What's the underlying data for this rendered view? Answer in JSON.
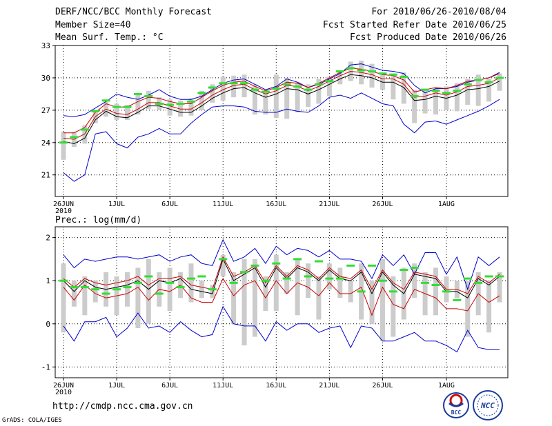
{
  "header": {
    "title": "DERF/NCC/BCC Monthly Forecast",
    "member": "Member Size=40",
    "variable": "Mean Surf. Temp.: °C",
    "period": "For 2010/06/26-2010/08/04",
    "start_date": "Fcst Started Refer Date 2010/06/25",
    "produced": "Fcst Produced Date 2010/06/26"
  },
  "footer": {
    "url": "http://cmdp.ncc.cma.gov.cn",
    "grads": "GrADS: COLA/IGES",
    "logo1": "BCC",
    "logo2": "NCC"
  },
  "colors": {
    "upper_bound": "#0000cc",
    "mean": "#000000",
    "median": "#cc0000",
    "box": "#cccccc",
    "marker": "#33dd33"
  },
  "chart_data": [
    {
      "type": "line",
      "title": "Mean Surf. Temp.: °C",
      "year_label": "2010",
      "xlabels": [
        "26JUN",
        "1JUL",
        "6JUL",
        "11JUL",
        "16JUL",
        "21JUL",
        "26JUL",
        "1AUG"
      ],
      "xlabel_index": [
        0,
        5,
        10,
        15,
        20,
        25,
        30,
        36
      ],
      "yticks": [
        21,
        24,
        27,
        30,
        33
      ],
      "ytick_labels": [
        "21",
        "24",
        "27",
        "30",
        "33"
      ],
      "ylim": [
        19,
        33
      ],
      "max_line": [
        26.5,
        26.4,
        26.6,
        27.2,
        27.8,
        28.5,
        28.2,
        28.0,
        28.4,
        28.9,
        28.3,
        28.0,
        28.0,
        28.3,
        28.9,
        29.5,
        29.8,
        29.9,
        29.4,
        28.9,
        29.2,
        29.9,
        29.6,
        29.1,
        29.4,
        29.9,
        30.4,
        31.2,
        31.3,
        31.0,
        30.7,
        30.6,
        30.4,
        29.3,
        28.6,
        29.0,
        29.0,
        29.2,
        29.6,
        29.8,
        30.0,
        30.5
      ],
      "min_line": [
        21.2,
        20.4,
        21.0,
        24.8,
        25.0,
        23.9,
        23.5,
        24.5,
        24.8,
        25.3,
        24.8,
        24.8,
        25.8,
        26.6,
        27.3,
        27.4,
        27.4,
        27.3,
        26.9,
        26.8,
        26.8,
        27.1,
        26.9,
        26.8,
        27.4,
        28.2,
        28.4,
        28.1,
        28.6,
        28.1,
        27.6,
        27.4,
        25.7,
        24.9,
        25.9,
        26.0,
        25.7,
        26.1,
        26.5,
        26.9,
        27.4,
        28.0
      ],
      "mean_line": [
        24.1,
        23.9,
        24.4,
        26.1,
        26.9,
        26.4,
        26.3,
        26.8,
        27.4,
        27.4,
        27.1,
        26.8,
        26.8,
        27.4,
        28.1,
        28.6,
        29.0,
        29.1,
        28.6,
        28.2,
        28.5,
        29.0,
        28.9,
        28.5,
        28.9,
        29.4,
        29.9,
        30.3,
        30.2,
        30.0,
        29.6,
        29.6,
        29.1,
        27.9,
        28.0,
        28.3,
        28.1,
        28.4,
        28.9,
        29.0,
        29.2,
        29.7
      ],
      "median_line": [
        24.4,
        24.3,
        24.8,
        26.4,
        27.1,
        26.7,
        26.6,
        27.1,
        27.7,
        27.7,
        27.4,
        27.1,
        27.1,
        27.7,
        28.4,
        28.9,
        29.3,
        29.4,
        28.9,
        28.5,
        28.8,
        29.3,
        29.2,
        28.8,
        29.2,
        29.7,
        30.2,
        30.6,
        30.5,
        30.3,
        29.9,
        29.9,
        29.4,
        28.2,
        28.3,
        28.6,
        28.4,
        28.7,
        29.2,
        29.3,
        29.5,
        30.0
      ],
      "upper_mean": [
        24.9,
        24.9,
        25.4,
        26.8,
        27.6,
        27.3,
        27.3,
        27.8,
        28.2,
        28.1,
        27.8,
        27.6,
        27.6,
        28.2,
        28.8,
        29.3,
        29.6,
        29.7,
        29.2,
        28.8,
        29.1,
        29.6,
        29.5,
        29.1,
        29.5,
        30.0,
        30.5,
        30.9,
        30.8,
        30.6,
        30.3,
        30.2,
        29.8,
        28.7,
        28.9,
        29.1,
        29.0,
        29.3,
        29.7,
        29.8,
        30.0,
        30.4
      ],
      "box_low": [
        22.4,
        23.6,
        23.9,
        25.8,
        26.4,
        26.1,
        26.1,
        26.6,
        27.1,
        27.0,
        26.5,
        26.4,
        26.5,
        27.0,
        27.7,
        27.9,
        28.2,
        28.2,
        26.6,
        26.6,
        26.3,
        26.2,
        26.8,
        27.3,
        27.6,
        28.3,
        29.4,
        29.7,
        29.4,
        29.1,
        28.9,
        28.0,
        27.6,
        25.8,
        26.7,
        26.6,
        27.0,
        26.9,
        27.5,
        27.4,
        27.8,
        28.8
      ],
      "box_high": [
        25.0,
        25.0,
        25.6,
        26.9,
        27.8,
        27.6,
        27.5,
        28.6,
        28.8,
        28.2,
        28.0,
        27.9,
        28.1,
        28.8,
        29.4,
        30.1,
        30.2,
        30.3,
        29.4,
        28.6,
        30.3,
        30.0,
        29.6,
        29.4,
        29.9,
        30.1,
        30.7,
        31.5,
        31.6,
        31.3,
        30.5,
        30.4,
        30.5,
        28.9,
        29.0,
        29.1,
        29.2,
        29.5,
        29.9,
        30.3,
        29.9,
        30.4
      ],
      "markers": [
        24.0,
        24.5,
        25.2,
        26.9,
        27.9,
        27.3,
        27.3,
        28.5,
        28.3,
        27.6,
        27.5,
        27.6,
        27.8,
        28.6,
        29.1,
        29.5,
        29.5,
        29.5,
        28.9,
        28.7,
        29.0,
        29.4,
        29.2,
        28.9,
        29.4,
        29.7,
        30.6,
        30.9,
        30.7,
        30.6,
        30.4,
        30.3,
        30.1,
        28.3,
        28.9,
        28.8,
        28.6,
        28.8,
        29.4,
        29.8,
        29.6,
        30.0
      ]
    },
    {
      "type": "line",
      "title": "Prec.: log(mm/d)",
      "year_label": "2010",
      "xlabels": [
        "26JUN",
        "1JUL",
        "6JUL",
        "11JUL",
        "16JUL",
        "21JUL",
        "26JUL",
        "1AUG"
      ],
      "xlabel_index": [
        0,
        5,
        10,
        15,
        20,
        25,
        30,
        36
      ],
      "yticks": [
        -1,
        0,
        1,
        2
      ],
      "ytick_labels": [
        "-1",
        "0",
        "1",
        "2"
      ],
      "ylim": [
        -1.25,
        2.25
      ],
      "max_line": [
        1.6,
        1.3,
        1.5,
        1.45,
        1.5,
        1.55,
        1.55,
        1.5,
        1.55,
        1.6,
        1.45,
        1.55,
        1.6,
        1.4,
        1.35,
        1.95,
        1.45,
        1.55,
        1.75,
        1.4,
        1.8,
        1.6,
        1.75,
        1.7,
        1.55,
        1.7,
        1.5,
        1.5,
        1.45,
        1.05,
        1.6,
        1.35,
        1.6,
        1.15,
        1.65,
        1.65,
        1.15,
        1.55,
        0.8,
        1.55,
        1.35,
        1.55
      ],
      "min_line": [
        -0.05,
        -0.4,
        0.05,
        0.05,
        0.15,
        -0.3,
        -0.1,
        0.25,
        -0.1,
        -0.05,
        -0.2,
        0.05,
        -0.15,
        -0.3,
        -0.25,
        0.4,
        0.0,
        -0.05,
        -0.05,
        -0.4,
        0.05,
        -0.15,
        0.0,
        0.0,
        -0.2,
        -0.1,
        -0.05,
        -0.55,
        -0.05,
        -0.1,
        -0.4,
        -0.4,
        -0.3,
        -0.2,
        -0.4,
        -0.4,
        -0.5,
        -0.65,
        -0.15,
        -0.55,
        -0.6,
        -0.6
      ],
      "mean_line": [
        1.0,
        0.75,
        1.0,
        0.85,
        0.8,
        0.85,
        0.9,
        1.0,
        0.8,
        1.0,
        0.95,
        1.05,
        0.8,
        0.75,
        0.7,
        1.5,
        1.0,
        1.15,
        1.3,
        0.85,
        1.3,
        1.05,
        1.3,
        1.2,
        1.0,
        1.25,
        1.05,
        1.0,
        1.2,
        0.7,
        1.2,
        0.9,
        0.7,
        1.15,
        1.1,
        1.05,
        0.75,
        0.75,
        0.6,
        1.05,
        0.9,
        1.1
      ],
      "median_line": [
        0.85,
        0.55,
        0.9,
        0.7,
        0.6,
        0.65,
        0.7,
        0.85,
        0.55,
        0.8,
        0.75,
        0.9,
        0.6,
        0.5,
        0.5,
        1.05,
        0.65,
        0.9,
        1.0,
        0.6,
        1.0,
        0.7,
        0.95,
        0.85,
        0.65,
        0.95,
        0.7,
        0.7,
        0.85,
        0.2,
        0.85,
        0.45,
        0.35,
        0.8,
        0.7,
        0.6,
        0.35,
        0.35,
        0.3,
        0.7,
        0.5,
        0.65
      ],
      "upper_mean": [
        1.05,
        0.85,
        1.05,
        0.95,
        0.9,
        0.95,
        1.0,
        1.1,
        0.9,
        1.05,
        1.05,
        1.1,
        0.9,
        0.85,
        0.8,
        1.55,
        1.1,
        1.2,
        1.35,
        0.95,
        1.35,
        1.1,
        1.35,
        1.25,
        1.05,
        1.3,
        1.1,
        1.05,
        1.25,
        0.8,
        1.25,
        0.95,
        0.8,
        1.2,
        1.15,
        1.1,
        0.8,
        0.8,
        0.7,
        1.1,
        0.95,
        1.15
      ],
      "box_low": [
        -0.2,
        0.4,
        0.2,
        0.5,
        0.4,
        0.2,
        0.4,
        -0.1,
        0.0,
        0.4,
        0.3,
        0.6,
        0.5,
        0.6,
        0.6,
        1.1,
        0.0,
        -0.5,
        -0.3,
        0.3,
        0.3,
        0.7,
        0.2,
        0.6,
        0.1,
        0.8,
        0.6,
        0.5,
        0.1,
        0.0,
        -0.4,
        -0.3,
        0.1,
        0.6,
        0.2,
        0.2,
        0.5,
        0.6,
        -0.3,
        0.2,
        -0.2,
        0.5
      ],
      "box_high": [
        1.4,
        1.0,
        1.1,
        1.0,
        1.2,
        1.1,
        1.2,
        1.3,
        1.5,
        1.2,
        1.3,
        1.2,
        1.4,
        1.0,
        0.9,
        1.6,
        1.2,
        1.5,
        1.5,
        1.1,
        1.6,
        1.2,
        1.5,
        1.4,
        1.1,
        1.4,
        1.3,
        1.0,
        1.4,
        1.0,
        1.5,
        1.1,
        1.3,
        1.4,
        1.2,
        1.3,
        1.1,
        1.0,
        1.0,
        1.2,
        1.0,
        1.2
      ],
      "markers": [
        1.0,
        0.85,
        0.85,
        0.8,
        0.7,
        0.8,
        0.85,
        0.95,
        1.1,
        0.7,
        0.95,
        0.85,
        1.05,
        1.1,
        0.8,
        1.5,
        0.95,
        1.2,
        1.35,
        1.0,
        1.4,
        1.05,
        1.5,
        1.1,
        1.45,
        1.05,
        1.05,
        1.35,
        0.75,
        1.35,
        1.0,
        0.75,
        1.25,
        1.3,
        0.95,
        0.9,
        0.75,
        0.55,
        1.05,
        0.95,
        1.1,
        1.1
      ]
    }
  ]
}
